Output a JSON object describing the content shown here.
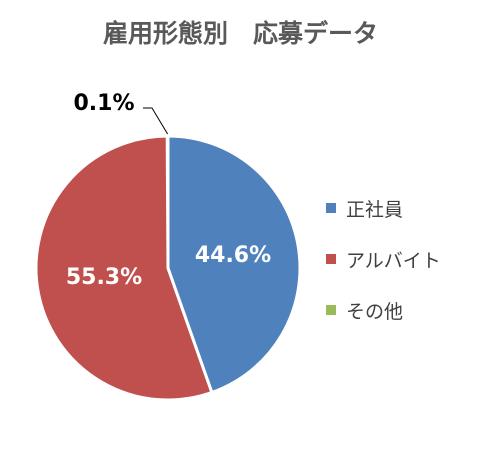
{
  "chart_data": {
    "type": "pie",
    "title": "雇用形態別　応募データ",
    "categories": [
      "正社員",
      "アルバイト",
      "その他"
    ],
    "values": [
      44.6,
      55.3,
      0.1
    ],
    "labels": [
      "44.6%",
      "55.3%",
      "0.1%"
    ],
    "colors": [
      "#4f81bd",
      "#c0504d",
      "#9bbb59"
    ],
    "legend": "right"
  }
}
